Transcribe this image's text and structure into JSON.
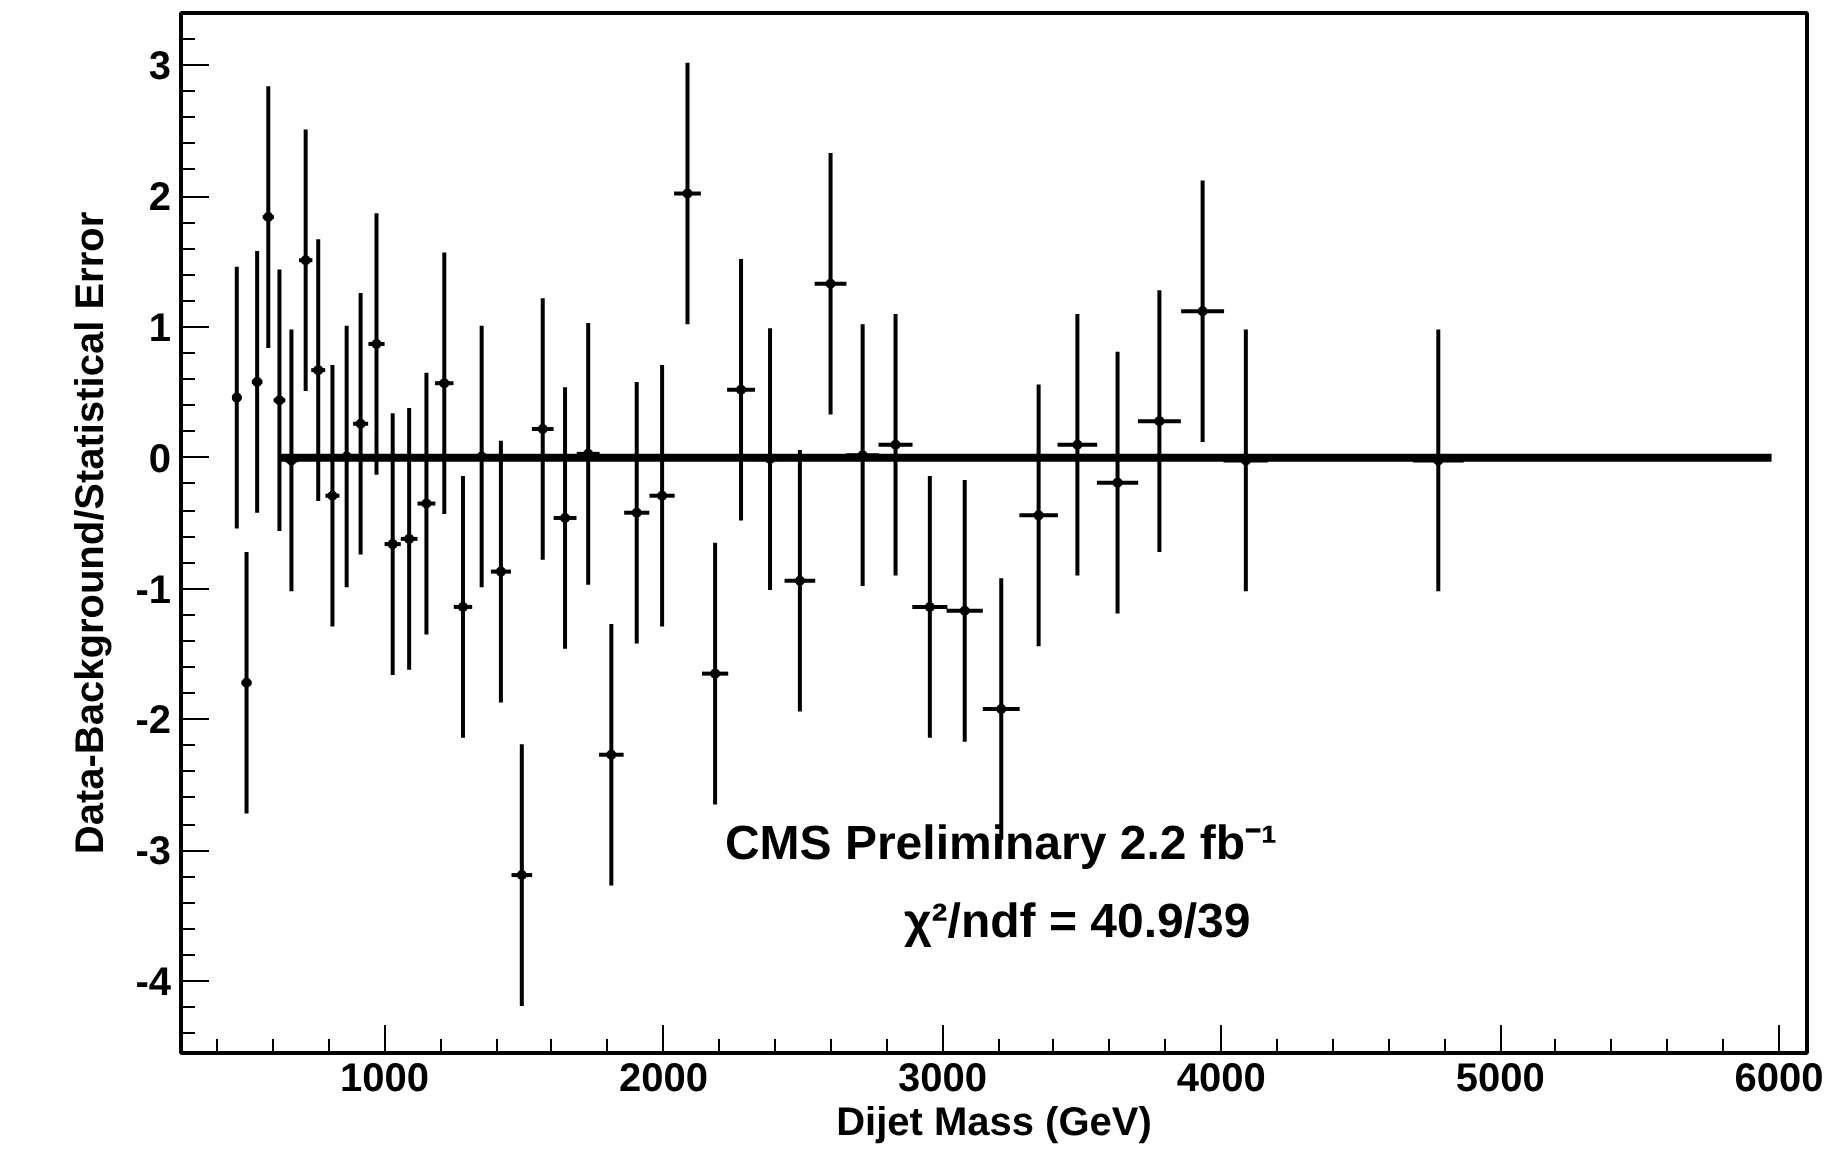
{
  "chart_data": {
    "type": "scatter",
    "xlabel": "Dijet Mass (GeV)",
    "ylabel": "Data-Background/Statistical Error",
    "annotations": [
      "CMS Preliminary 2.2 fb⁻¹",
      "χ²/ndf  =  40.9/39"
    ],
    "xlim": [
      270,
      6100
    ],
    "ylim": [
      -4.55,
      3.4
    ],
    "xticks": [
      1000,
      2000,
      3000,
      4000,
      5000,
      6000
    ],
    "yticks": [
      -4,
      -3,
      -2,
      -1,
      0,
      1,
      2,
      3
    ],
    "grid": false,
    "series": [
      {
        "color": "#000000",
        "x": [
          470,
          505,
          543,
          583,
          623,
          666,
          717,
          762,
          813,
          864,
          914,
          971,
          1029,
          1088,
          1150,
          1214,
          1281,
          1348,
          1417,
          1492,
          1567,
          1647,
          1730,
          1813,
          1904,
          1995,
          2086,
          2185,
          2278,
          2382,
          2489,
          2599,
          2714,
          2832,
          2955,
          3080,
          3211,
          3345,
          3484,
          3628,
          3778,
          3933,
          4088,
          4778
        ],
        "values": [
          0.46,
          -1.72,
          0.58,
          1.84,
          0.44,
          -0.02,
          1.51,
          0.67,
          -0.29,
          0.01,
          0.26,
          0.87,
          -0.66,
          -0.62,
          -0.35,
          0.57,
          -1.14,
          0.01,
          -0.87,
          -3.19,
          0.22,
          -0.46,
          0.03,
          -2.27,
          -0.42,
          -0.29,
          2.02,
          -1.65,
          0.52,
          -0.01,
          -0.94,
          1.33,
          0.02,
          0.1,
          -1.14,
          -1.17,
          -1.92,
          -0.44,
          0.1,
          -0.19,
          0.28,
          1.12,
          -0.02,
          -0.02
        ],
        "errors": [
          1,
          1,
          1,
          1,
          1,
          1,
          1,
          1,
          1,
          1,
          1,
          1,
          1,
          1,
          1,
          1,
          1,
          1,
          1,
          1,
          1,
          1,
          1,
          1,
          1,
          1,
          1,
          1,
          1,
          1,
          1,
          1,
          1,
          1,
          1,
          1,
          1,
          1,
          1,
          1,
          1,
          1,
          1,
          1
        ],
        "xerrors": [
          17,
          18,
          19,
          20,
          21,
          23,
          24,
          25,
          25,
          25,
          27,
          29,
          29,
          30,
          32,
          33,
          33,
          34,
          36,
          37,
          39,
          41,
          41,
          44,
          45,
          45,
          48,
          47,
          50,
          53,
          55,
          57,
          59,
          61,
          63,
          65,
          66,
          69,
          71,
          74,
          77,
          77,
          80,
          91
        ]
      },
      {
        "type": "line",
        "color": "#000000",
        "x": [
          623,
          5973
        ],
        "values": [
          0,
          0
        ]
      }
    ]
  }
}
